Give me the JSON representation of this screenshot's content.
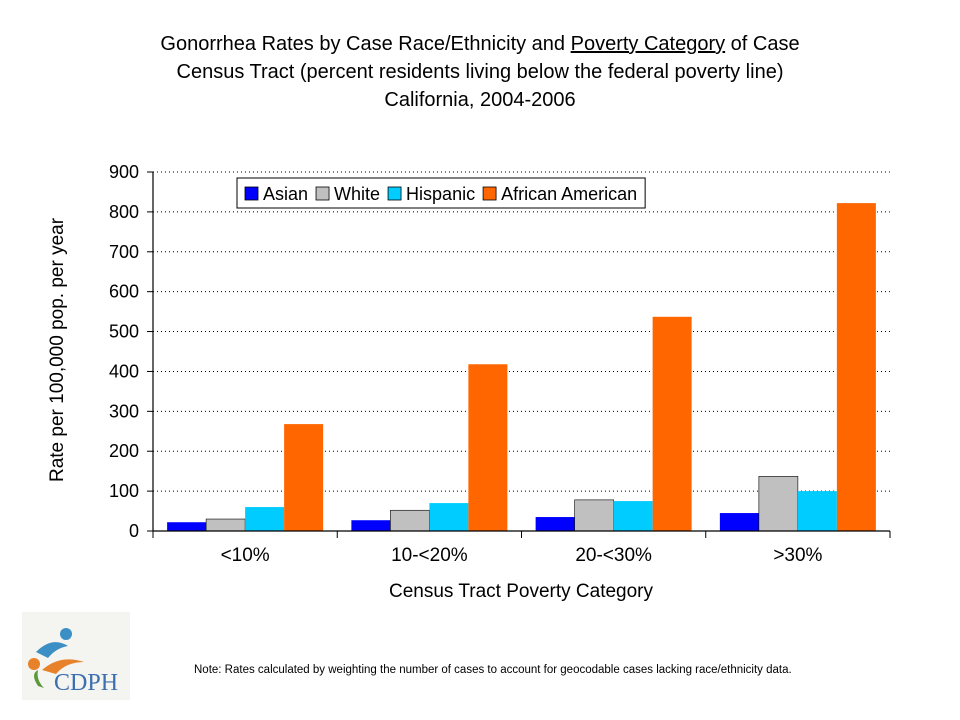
{
  "title": {
    "line1_pre": "Gonorrhea Rates by Case Race/Ethnicity and ",
    "line1_underlined": "Poverty Category",
    "line1_post": " of Case",
    "line2": "Census Tract (percent residents living below the federal poverty line)",
    "line3": "California, 2004-2006"
  },
  "logo": {
    "text": "CDPH",
    "icon": "cdph-logo-icon"
  },
  "note": "Note: Rates calculated by weighting the number of cases to account for geocodable cases lacking race/ethnicity data.",
  "chart_data": {
    "type": "bar",
    "title": "Gonorrhea Rates by Case Race/Ethnicity and Poverty Category of Case Census Tract (percent residents living below the federal poverty line) California, 2004-2006",
    "xlabel": "Census Tract Poverty Category",
    "ylabel": "Rate per 100,000 pop. per year",
    "ylim": [
      0,
      900
    ],
    "yticks": [
      0,
      100,
      200,
      300,
      400,
      500,
      600,
      700,
      800,
      900
    ],
    "categories": [
      "<10%",
      "10-<20%",
      "20-<30%",
      ">30%"
    ],
    "grid": "horizontal dotted",
    "legend_position": "top",
    "series": [
      {
        "name": "Asian",
        "color": "#0000FF",
        "values": [
          22,
          27,
          35,
          45
        ]
      },
      {
        "name": "White",
        "color": "#C0C0C0",
        "values": [
          30,
          52,
          78,
          137
        ]
      },
      {
        "name": "Hispanic",
        "color": "#00CCFF",
        "values": [
          60,
          70,
          75,
          100
        ]
      },
      {
        "name": "African American",
        "color": "#FF6600",
        "values": [
          268,
          418,
          537,
          822
        ]
      }
    ]
  }
}
